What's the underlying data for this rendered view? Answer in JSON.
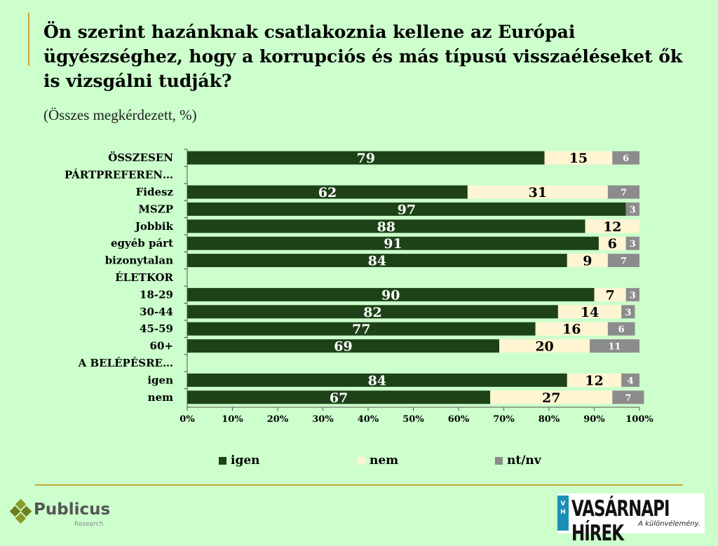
{
  "title": "Ön szerint hazánknak csatlakoznia kellene az Európai ügyészséghez, hogy a korrupciós és más típusú visszaéléseket ők is vizsgálni tudják?",
  "subtitle": "(Összes megkérdezett, %)",
  "colors": {
    "igen": "#1d4218",
    "nem": "#fff5d2",
    "ntnv": "#8c8c8c",
    "background": "#ccffcc",
    "accent_line": "#c8a632"
  },
  "chart_data": {
    "type": "bar",
    "orientation": "horizontal",
    "stacked": true,
    "xlim": [
      0,
      100
    ],
    "x_ticks": [
      "0%",
      "10%",
      "20%",
      "30%",
      "40%",
      "50%",
      "60%",
      "70%",
      "80%",
      "90%",
      "100%"
    ],
    "categories": [
      "ÖSSZESEN",
      "PÁRTPREFEREN…",
      "Fidesz",
      "MSZP",
      "Jobbik",
      "egyéb párt",
      "bizonytalan",
      "ÉLETKOR",
      "18-29",
      "30-44",
      "45-59",
      "60+",
      "A BELÉPÉSRE…",
      "igen",
      "nem"
    ],
    "series": [
      {
        "name": "igen",
        "values": [
          79,
          null,
          62,
          97,
          88,
          91,
          84,
          null,
          90,
          82,
          77,
          69,
          null,
          84,
          67
        ]
      },
      {
        "name": "nem",
        "values": [
          15,
          null,
          31,
          null,
          12,
          6,
          9,
          null,
          7,
          14,
          16,
          20,
          null,
          12,
          27
        ]
      },
      {
        "name": "nt/nv",
        "values": [
          6,
          null,
          7,
          3,
          null,
          3,
          7,
          null,
          3,
          3,
          6,
          11,
          null,
          4,
          7
        ]
      }
    ],
    "legend_position": "bottom",
    "grid": false
  },
  "logos": {
    "publicus": {
      "name": "Publicus",
      "sub": "Research"
    },
    "vasarnapi": {
      "name": "VASÁRNAPI HÍREK",
      "box": "V H",
      "tagline": "A különvélemény."
    }
  }
}
